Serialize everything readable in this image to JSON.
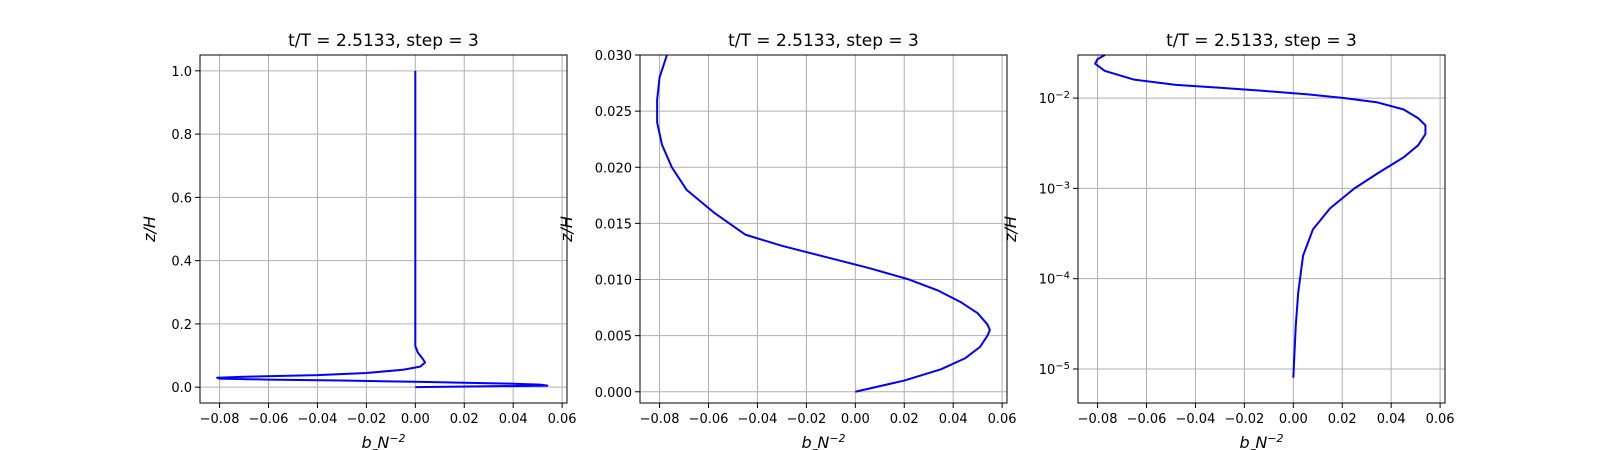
{
  "chart_data": [
    {
      "type": "line",
      "title": "t/T = 2.5133, step = 3",
      "xlabel": "b_zN^{-2}",
      "ylabel": "z/H",
      "xlim": [
        -0.088,
        0.062
      ],
      "ylim": [
        -0.05,
        1.05
      ],
      "yscale": "linear",
      "grid": true,
      "xticks": [
        -0.08,
        -0.06,
        -0.04,
        -0.02,
        0.0,
        0.02,
        0.04,
        0.06
      ],
      "xtick_labels": [
        "−0.08",
        "−0.06",
        "−0.04",
        "−0.02",
        "0.00",
        "0.02",
        "0.04",
        "0.06"
      ],
      "yticks": [
        0.0,
        0.2,
        0.4,
        0.6,
        0.8,
        1.0
      ],
      "ytick_labels": [
        "0.0",
        "0.2",
        "0.4",
        "0.6",
        "0.8",
        "1.0"
      ],
      "series": [
        {
          "color": "#0000ff",
          "x": [
            0.0,
            0.054,
            0.051,
            0.04,
            0.02,
            0.0,
            -0.03,
            -0.06,
            -0.08,
            -0.081,
            -0.07,
            -0.04,
            -0.02,
            -0.005,
            0.002,
            0.004,
            0.003,
            0.001,
            0.0,
            0.0,
            0.0,
            0.0
          ],
          "y": [
            0.0,
            0.005,
            0.008,
            0.011,
            0.014,
            0.017,
            0.021,
            0.024,
            0.027,
            0.03,
            0.033,
            0.038,
            0.045,
            0.055,
            0.065,
            0.078,
            0.09,
            0.11,
            0.13,
            0.2,
            0.6,
            1.0
          ]
        }
      ]
    },
    {
      "type": "line",
      "title": "t/T = 2.5133, step = 3",
      "xlabel": "b_zN^{-2}",
      "ylabel": "z/H",
      "xlim": [
        -0.088,
        0.062
      ],
      "ylim": [
        -0.001,
        0.03
      ],
      "yscale": "linear",
      "grid": true,
      "xticks": [
        -0.08,
        -0.06,
        -0.04,
        -0.02,
        0.0,
        0.02,
        0.04,
        0.06
      ],
      "xtick_labels": [
        "−0.08",
        "−0.06",
        "−0.04",
        "−0.02",
        "0.00",
        "0.02",
        "0.04",
        "0.06"
      ],
      "yticks": [
        0.0,
        0.005,
        0.01,
        0.015,
        0.02,
        0.025,
        0.03
      ],
      "ytick_labels": [
        "0.000",
        "0.005",
        "0.010",
        "0.015",
        "0.020",
        "0.025",
        "0.030"
      ],
      "series": [
        {
          "color": "#0000ff",
          "x": [
            0.0,
            0.02,
            0.035,
            0.045,
            0.051,
            0.054,
            0.055,
            0.054,
            0.05,
            0.043,
            0.034,
            0.022,
            0.006,
            -0.012,
            -0.03,
            -0.045,
            -0.058,
            -0.069,
            -0.075,
            -0.079,
            -0.081,
            -0.081,
            -0.08,
            -0.077
          ],
          "y": [
            0.0,
            0.001,
            0.002,
            0.003,
            0.004,
            0.005,
            0.0055,
            0.006,
            0.007,
            0.008,
            0.009,
            0.01,
            0.011,
            0.012,
            0.013,
            0.014,
            0.016,
            0.018,
            0.02,
            0.022,
            0.024,
            0.026,
            0.028,
            0.03
          ]
        }
      ]
    },
    {
      "type": "line",
      "title": "t/T = 2.5133, step = 3",
      "xlabel": "b_zN^{-2}",
      "ylabel": "z/H",
      "xlim": [
        -0.088,
        0.062
      ],
      "ylim": [
        4.2e-06,
        0.03
      ],
      "yscale": "log",
      "grid": true,
      "xticks": [
        -0.08,
        -0.06,
        -0.04,
        -0.02,
        0.0,
        0.02,
        0.04,
        0.06
      ],
      "xtick_labels": [
        "−0.08",
        "−0.06",
        "−0.04",
        "−0.02",
        "0.00",
        "0.02",
        "0.04",
        "0.06"
      ],
      "yticks": [
        1e-05,
        0.0001,
        0.001,
        0.01
      ],
      "ytick_labels": [
        {
          "base": "10",
          "exp": "−5"
        },
        {
          "base": "10",
          "exp": "−4"
        },
        {
          "base": "10",
          "exp": "−3"
        },
        {
          "base": "10",
          "exp": "−2"
        }
      ],
      "series": [
        {
          "color": "#0000ff",
          "x": [
            0.0,
            0.001,
            0.002,
            0.004,
            0.008,
            0.015,
            0.025,
            0.035,
            0.045,
            0.051,
            0.054,
            0.054,
            0.051,
            0.045,
            0.034,
            0.021,
            0.006,
            -0.012,
            -0.03,
            -0.048,
            -0.065,
            -0.077,
            -0.081,
            -0.08,
            -0.077
          ],
          "y": [
            8e-06,
            3e-05,
            7e-05,
            0.00018,
            0.00035,
            0.0006,
            0.001,
            0.0015,
            0.0022,
            0.003,
            0.004,
            0.005,
            0.006,
            0.0075,
            0.009,
            0.01,
            0.011,
            0.012,
            0.013,
            0.014,
            0.016,
            0.02,
            0.024,
            0.027,
            0.03
          ]
        }
      ]
    }
  ]
}
